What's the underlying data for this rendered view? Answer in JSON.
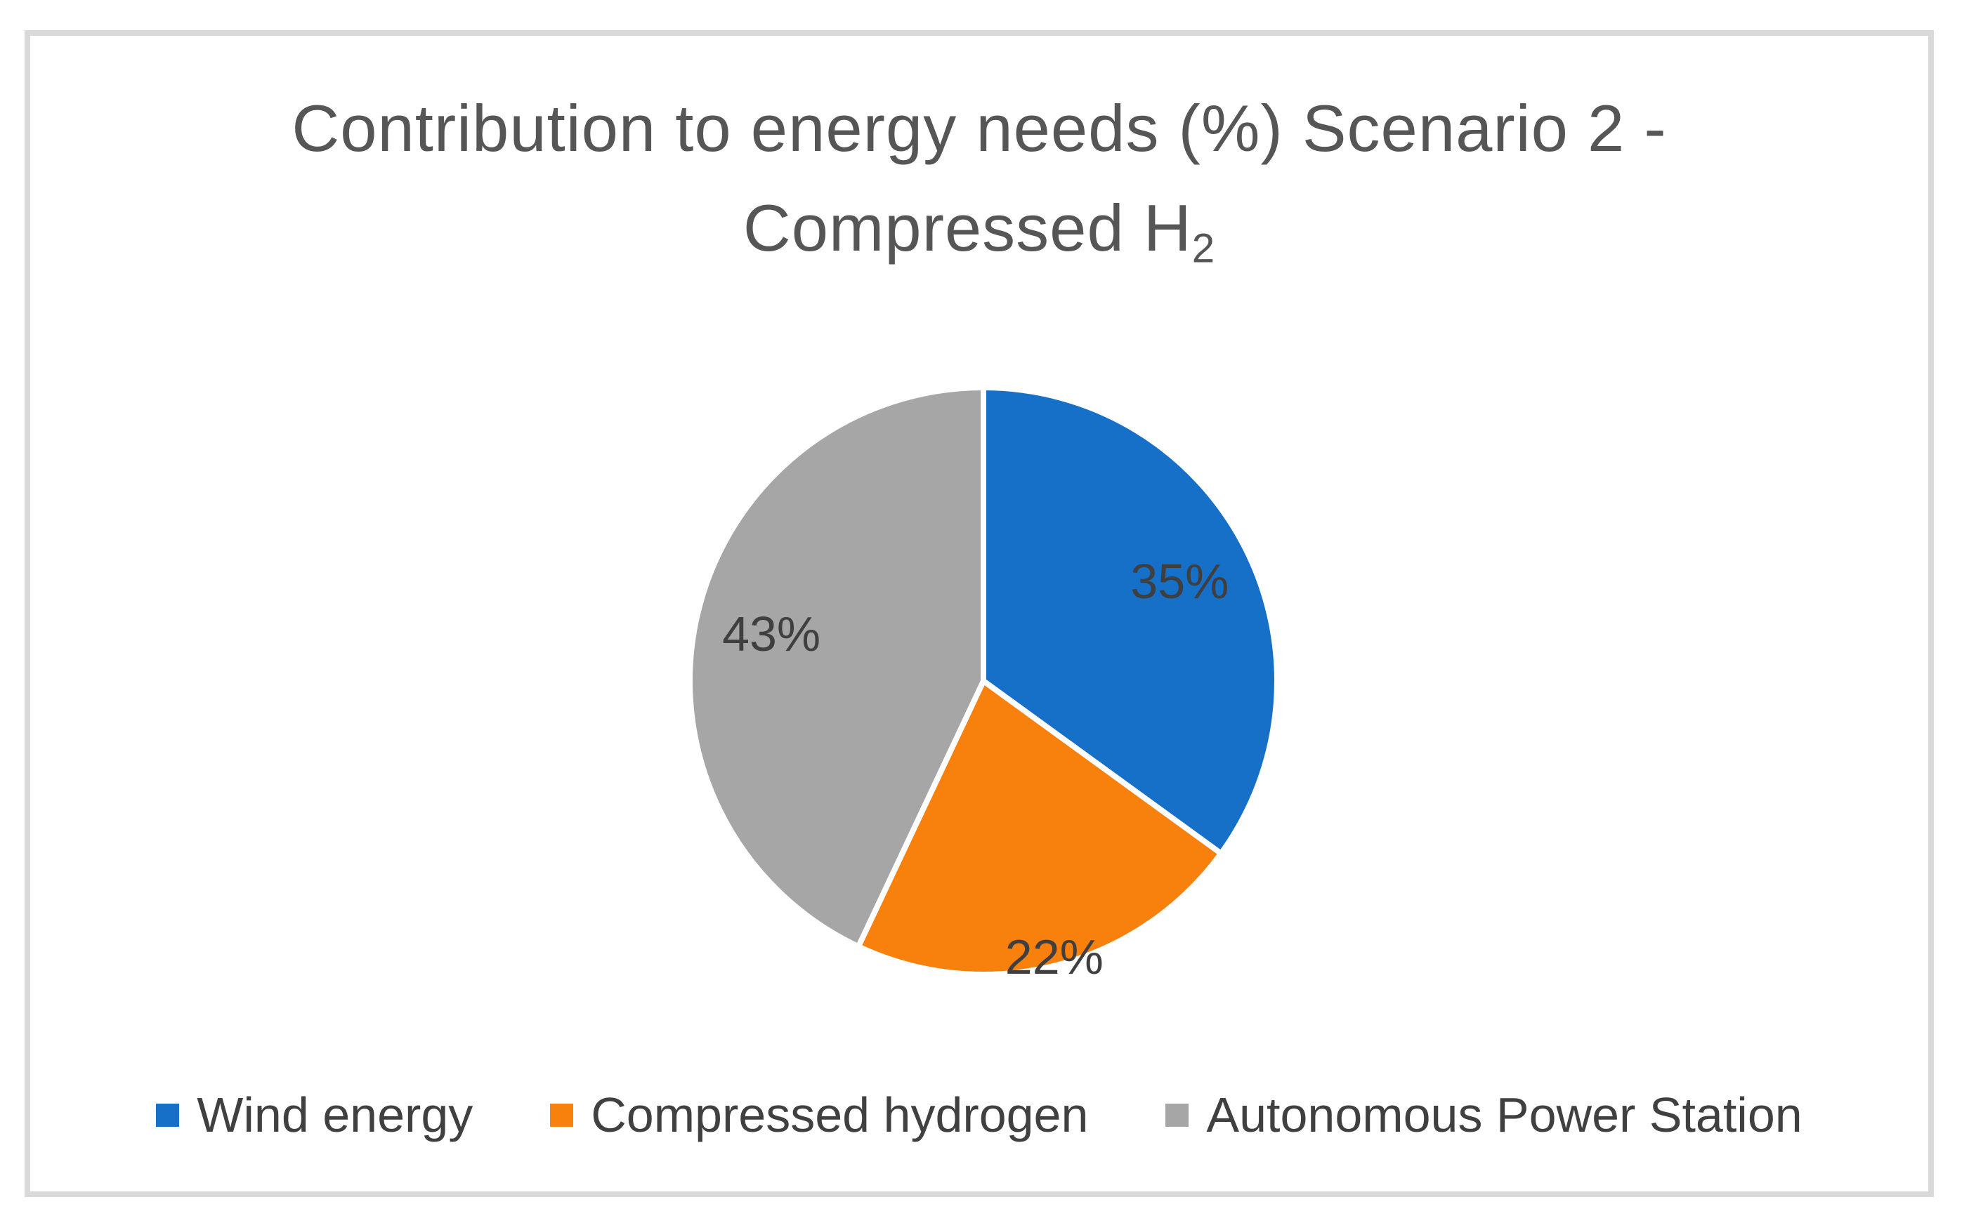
{
  "figure": {
    "title_line1": "Contribution to energy needs (%) Scenario 2 -",
    "title_line2_base": "Compressed H",
    "title_line2_subscript": "2"
  },
  "chart_data": {
    "type": "pie",
    "title": "Contribution to energy needs (%) Scenario 2 - Compressed H2",
    "categories": [
      "Wind energy",
      "Compressed hydrogen",
      "Autonomous Power Station"
    ],
    "values": [
      35,
      22,
      43
    ],
    "slice_labels": [
      "35%",
      "22%",
      "43%"
    ],
    "colors": [
      "#1770C8",
      "#F8810D",
      "#A6A6A6"
    ],
    "start_angle_deg": 0,
    "direction": "clockwise",
    "legend_position": "bottom",
    "label_radius_factors": [
      0.75,
      0.97,
      0.74
    ],
    "label_color": "#3F3F3F",
    "title_color": "#565656",
    "separator_color": "#FFFFFF",
    "frame_border_color": "#D9D9D9"
  }
}
